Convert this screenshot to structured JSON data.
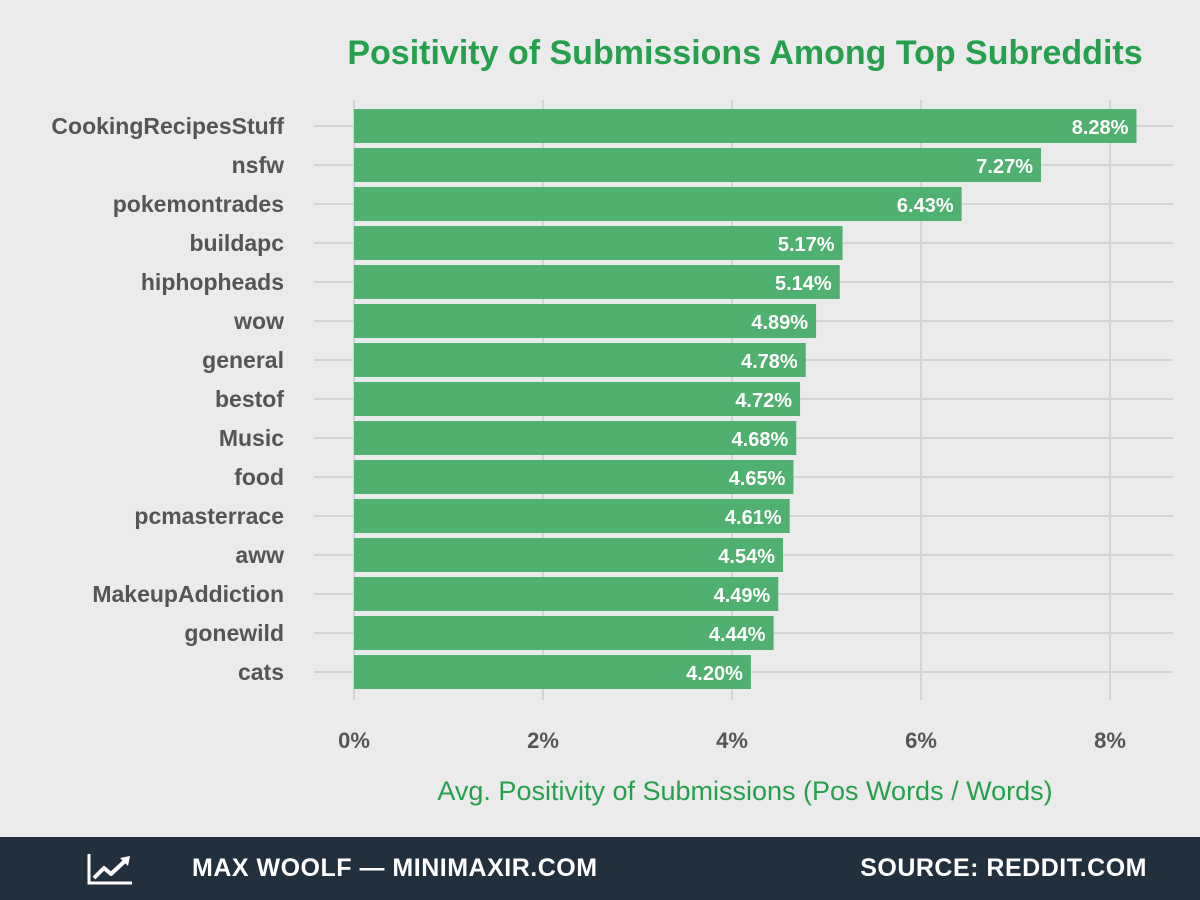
{
  "colors": {
    "background": "#ebebeb",
    "accent": "#27a04e",
    "bar": "#4fb06f",
    "grid": "#d4d4d4",
    "footer": "#222f3d"
  },
  "footer": {
    "icon": "trend-line-icon",
    "credit": "MAX WOOLF — MINIMAXIR.COM",
    "source": "SOURCE: REDDIT.COM"
  },
  "chart_data": {
    "type": "bar",
    "orientation": "horizontal",
    "title": "Positivity of Submissions Among Top Subreddits",
    "xlabel": "Avg. Positivity of Submissions (Pos Words / Words)",
    "ylabel": "",
    "categories": [
      "CookingRecipesStuff",
      "nsfw",
      "pokemontrades",
      "buildapc",
      "hiphopheads",
      "wow",
      "general",
      "bestof",
      "Music",
      "food",
      "pcmasterrace",
      "aww",
      "MakeupAddiction",
      "gonewild",
      "cats"
    ],
    "values": [
      8.28,
      7.27,
      6.43,
      5.17,
      5.14,
      4.89,
      4.78,
      4.72,
      4.68,
      4.65,
      4.61,
      4.54,
      4.49,
      4.44,
      4.2
    ],
    "value_labels": [
      "8.28%",
      "7.27%",
      "6.43%",
      "5.17%",
      "5.14%",
      "4.89%",
      "4.78%",
      "4.72%",
      "4.68%",
      "4.65%",
      "4.61%",
      "4.54%",
      "4.49%",
      "4.44%",
      "4.20%"
    ],
    "xticks": [
      0,
      2,
      4,
      6,
      8
    ],
    "xtick_labels": [
      "0%",
      "2%",
      "4%",
      "6%",
      "8%"
    ],
    "xlim": [
      0,
      8.6
    ],
    "grid": true,
    "legend": "none"
  }
}
